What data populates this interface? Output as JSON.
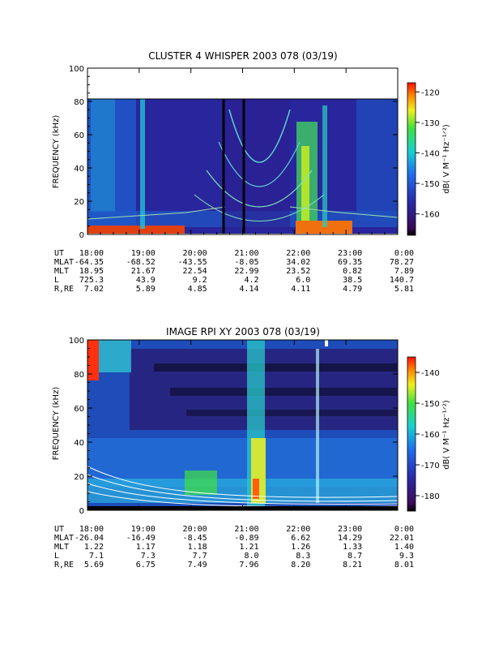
{
  "panels": [
    {
      "title": "CLUSTER 4 WHISPER 2003 078 (03/19)",
      "ylabel": "FREQUENCY (kHz)",
      "cbar_label": "dB( V M⁻¹ Hz⁻¹ᐟ²)",
      "ephemeris": [
        {
          "label": "UT",
          "values": [
            "18:00",
            "19:00",
            "20:00",
            "21:00",
            "22:00",
            "23:00",
            "0:00"
          ]
        },
        {
          "label": "MLAT",
          "values": [
            "-64.35",
            "-68.52",
            "-43.55",
            "-8.05",
            "34.02",
            "69.35",
            "78.27"
          ]
        },
        {
          "label": "MLT",
          "values": [
            "18.95",
            "21.67",
            "22.54",
            "22.99",
            "23.52",
            "0.82",
            "7.89"
          ]
        },
        {
          "label": "L",
          "values": [
            "725.3",
            "43.9",
            "9.2",
            "4.2",
            "6.0",
            "38.5",
            "140.7"
          ]
        },
        {
          "label": "R,RE",
          "values": [
            "7.02",
            "5.89",
            "4.85",
            "4.14",
            "4.11",
            "4.79",
            "5.81"
          ]
        }
      ]
    },
    {
      "title": "IMAGE RPI XY 2003 078 (03/19)",
      "ylabel": "FREQUENCY (kHz)",
      "cbar_label": "dB( V M⁻¹ Hz⁻¹ᐟ²)",
      "ephemeris": [
        {
          "label": "UT",
          "values": [
            "18:00",
            "19:00",
            "20:00",
            "21:00",
            "22:00",
            "23:00",
            "0:00"
          ]
        },
        {
          "label": "MLAT",
          "values": [
            "-26.04",
            "-16.49",
            "-8.45",
            "-0.89",
            "6.62",
            "14.29",
            "22.01"
          ]
        },
        {
          "label": "MLT",
          "values": [
            "1.22",
            "1.17",
            "1.18",
            "1.21",
            "1.26",
            "1.33",
            "1.40"
          ]
        },
        {
          "label": "L",
          "values": [
            "7.1",
            "7.3",
            "7.7",
            "8.0",
            "8.3",
            "8.7",
            "9.3"
          ]
        },
        {
          "label": "R,RE",
          "values": [
            "5.69",
            "6.75",
            "7.49",
            "7.96",
            "8.20",
            "8.21",
            "8.01"
          ]
        }
      ]
    }
  ],
  "chart_data": [
    {
      "type": "heatmap",
      "title": "CLUSTER 4 WHISPER 2003 078 (03/19)",
      "ylabel": "FREQUENCY (kHz)",
      "x_ticks": [
        "18:00",
        "19:00",
        "20:00",
        "21:00",
        "22:00",
        "23:00",
        "0:00"
      ],
      "y_ticks": [
        "0",
        "20",
        "40",
        "60",
        "80",
        "100"
      ],
      "ylim": [
        0,
        100
      ],
      "data_fmax_khz": 80,
      "colorbar_ticks": [
        "-120",
        "-130",
        "-140",
        "-150",
        "-160"
      ],
      "colorbar_range": [
        -167,
        -117
      ],
      "colorbar_label": "dB( V M⁻¹ Hz⁻¹ᐟ²)",
      "markers_ut": [
        20.65,
        21.05
      ],
      "features": "intense emission below ~5 kHz; plasmaspheric upper-hybrid/hiss bands 20:30-22:00; multiple harmonic arcs 20:30-22:30"
    },
    {
      "type": "heatmap",
      "title": "IMAGE RPI XY 2003 078 (03/19)",
      "ylabel": "FREQUENCY (kHz)",
      "x_ticks": [
        "18:00",
        "19:00",
        "20:00",
        "21:00",
        "22:00",
        "23:00",
        "0:00"
      ],
      "y_ticks": [
        "0",
        "20",
        "40",
        "60",
        "80",
        "100"
      ],
      "ylim": [
        0,
        100
      ],
      "colorbar_ticks": [
        "-140",
        "-150",
        "-160",
        "-170",
        "-180"
      ],
      "colorbar_range": [
        -185,
        -135
      ],
      "colorbar_label": "dB( V M⁻¹ Hz⁻¹ᐟ²)",
      "features": "broadband emission near 21:10 UT; noise band below ~20 kHz; white model curves decreasing from 30 kHz at 18:00"
    }
  ]
}
